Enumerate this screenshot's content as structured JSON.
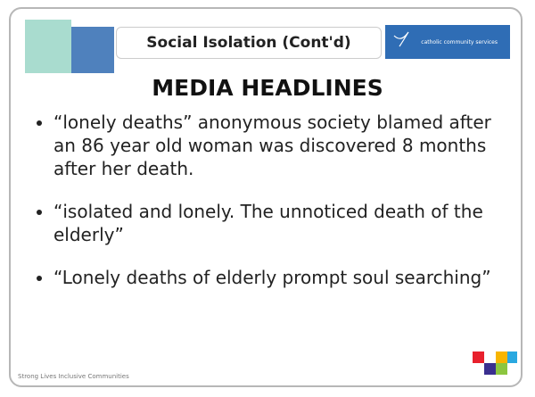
{
  "header": {
    "title": "Social Isolation (Cont'd)",
    "logo_text": "catholic community services"
  },
  "heading": "MEDIA HEADLINES",
  "bullets": [
    "“lonely deaths” anonymous society blamed after an 86 year old woman was discovered 8 months after her death.",
    "“isolated and lonely. The unnoticed death of the elderly”",
    "“Lonely deaths of elderly prompt soul searching”"
  ],
  "footer": "Strong Lives Inclusive Communities"
}
